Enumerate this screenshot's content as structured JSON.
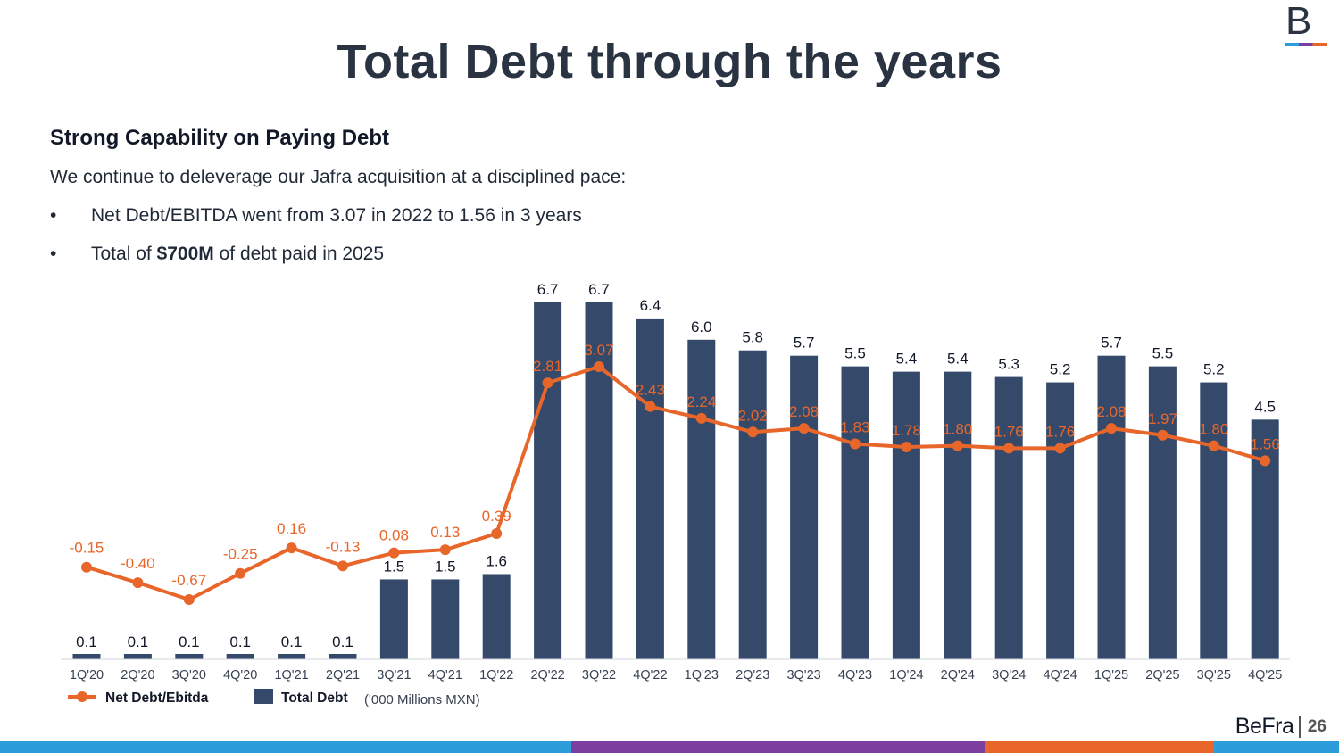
{
  "page": {
    "title": "Total Debt through the years",
    "logo_letter": "B",
    "subtitle": "Strong Capability on Paying Debt",
    "intro": "We continue to deleverage our Jafra acquisition at a disciplined pace:",
    "bullets": [
      {
        "marker": "•",
        "text": "Net Debt/EBITDA went from 3.07 in 2022 to 1.56 in 3 years"
      },
      {
        "marker": "•",
        "pre": "Total of ",
        "strong": "$700M",
        "post": " of debt paid in 2025"
      }
    ],
    "footer_brand": "BeFra",
    "page_number": "26"
  },
  "colors": {
    "bar": "#354a6b",
    "line": "#e8662a",
    "title": "#2a3342",
    "accent_blue": "#2d9cdb",
    "accent_purple": "#7b3fa0",
    "accent_orange": "#e8662a"
  },
  "chart_data": {
    "type": "bar+line",
    "categories": [
      "1Q'20",
      "2Q'20",
      "3Q'20",
      "4Q'20",
      "1Q'21",
      "2Q'21",
      "3Q'21",
      "4Q'21",
      "1Q'22",
      "2Q'22",
      "3Q'22",
      "4Q'22",
      "1Q'23",
      "2Q'23",
      "3Q'23",
      "4Q'23",
      "1Q'24",
      "2Q'24",
      "3Q'24",
      "4Q'24",
      "1Q'25",
      "2Q'25",
      "3Q'25",
      "4Q'25"
    ],
    "series": [
      {
        "name": "Total Debt",
        "type": "bar",
        "values": [
          0.1,
          0.1,
          0.1,
          0.1,
          0.1,
          0.1,
          1.5,
          1.5,
          1.6,
          6.7,
          6.7,
          6.4,
          6.0,
          5.8,
          5.7,
          5.5,
          5.4,
          5.4,
          5.3,
          5.2,
          5.7,
          5.5,
          5.2,
          4.5
        ],
        "labels": [
          "0.1",
          "0.1",
          "0.1",
          "0.1",
          "0.1",
          "0.1",
          "1.5",
          "1.5",
          "1.6",
          "6.7",
          "6.7",
          "6.4",
          "6.0",
          "5.8",
          "5.7",
          "5.5",
          "5.4",
          "5.4",
          "5.3",
          "5.2",
          "5.7",
          "5.5",
          "5.2",
          "4.5"
        ]
      },
      {
        "name": "Net Debt/Ebitda",
        "type": "line",
        "values": [
          -0.15,
          -0.4,
          -0.67,
          -0.25,
          0.16,
          -0.13,
          0.08,
          0.13,
          0.39,
          2.81,
          3.07,
          2.43,
          2.24,
          2.02,
          2.08,
          1.83,
          1.78,
          1.8,
          1.76,
          1.76,
          2.08,
          1.97,
          1.8,
          1.56
        ],
        "labels": [
          "-0.15",
          "-0.40",
          "-0.67",
          "-0.25",
          "0.16",
          "-0.13",
          "0.08",
          "0.13",
          "0.39",
          "2.81",
          "3.07",
          "2.43",
          "2.24",
          "2.02",
          "2.08",
          "1.83",
          "1.78",
          "1.80",
          "1.76",
          "1.76",
          "2.08",
          "1.97",
          "1.80",
          "1.56"
        ]
      }
    ],
    "legend": [
      {
        "label": "Net Debt/Ebitda",
        "kind": "line"
      },
      {
        "label": "Total Debt",
        "kind": "bar"
      }
    ],
    "unit_note": "('000 Millions MXN)",
    "bar_ylim": [
      0,
      6.7
    ],
    "line_ylim": [
      -0.67,
      3.07
    ],
    "legend_position": "bottom-left"
  }
}
